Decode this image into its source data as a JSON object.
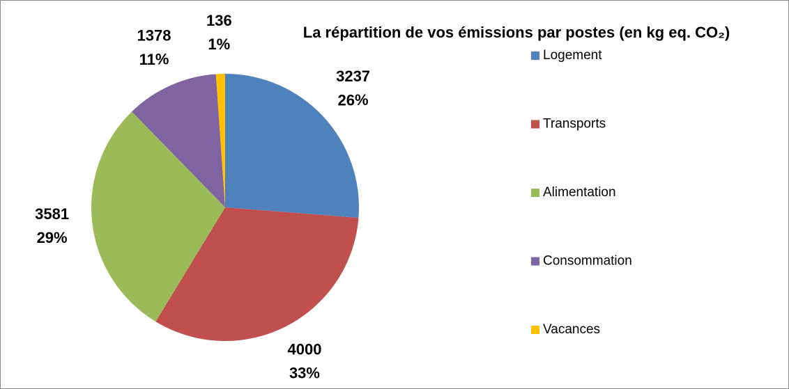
{
  "chart_data": {
    "type": "pie",
    "title": "La répartition de vos émissions par postes (en kg eq. CO₂)",
    "categories": [
      "Logement",
      "Transports",
      "Alimentation",
      "Consommation",
      "Vacances"
    ],
    "values": [
      3237,
      4000,
      3581,
      1378,
      136
    ],
    "percentages": [
      26,
      33,
      29,
      11,
      1
    ],
    "colors": [
      "#4f81bd",
      "#c0504d",
      "#9bbb59",
      "#8064a2",
      "#ffc000"
    ],
    "legend": "right"
  }
}
